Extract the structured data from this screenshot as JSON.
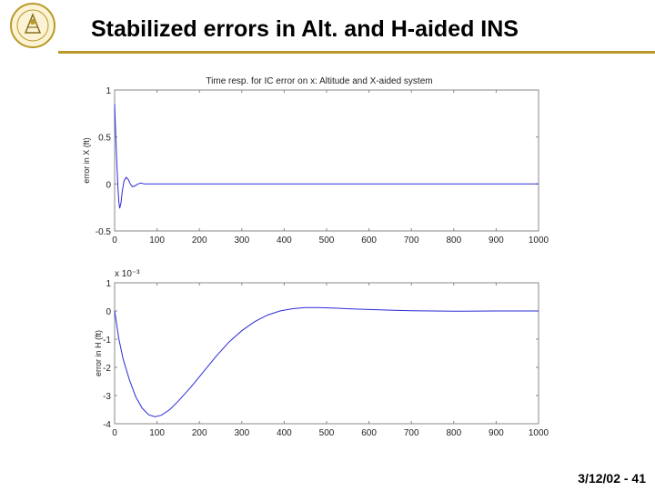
{
  "slide": {
    "title": "Stabilized errors in Alt. and H-aided INS",
    "footer": "3/12/02 - 41"
  },
  "colors": {
    "accent": "#b89a2a",
    "series": "#2b2bd6",
    "axis": "#888888"
  },
  "chart_data": [
    {
      "type": "line",
      "title": "Time resp. for IC error on x: Altitude and X-aided system",
      "ylabel": "error in X (ft)",
      "xlabel": "",
      "xlim": [
        0,
        1000
      ],
      "ylim": [
        -0.5,
        1
      ],
      "xticks": [
        0,
        100,
        200,
        300,
        400,
        500,
        600,
        700,
        800,
        900,
        1000
      ],
      "yticks": [
        -0.5,
        0,
        0.5,
        1
      ],
      "ytick_labels": [
        "-0.5",
        "0",
        "0.5",
        "1"
      ],
      "grid": false,
      "series": [
        {
          "x": [
            0,
            2,
            5,
            8,
            10,
            12,
            15,
            18,
            22,
            27,
            32,
            37,
            42,
            48,
            55,
            62,
            70,
            80,
            95,
            120,
            160,
            200,
            1000
          ],
          "y": [
            0.85,
            0.6,
            0.25,
            -0.05,
            -0.2,
            -0.26,
            -0.2,
            -0.08,
            0.03,
            0.07,
            0.05,
            0.0,
            -0.03,
            -0.02,
            0.0,
            0.01,
            0.0,
            0.0,
            0.0,
            0.0,
            0.0,
            0.0,
            0.0
          ]
        }
      ]
    },
    {
      "type": "line",
      "title": "",
      "ylabel": "error in H (ft)",
      "xlabel": "",
      "y_scale_note": "x 10⁻³",
      "xlim": [
        0,
        1000
      ],
      "ylim": [
        -4,
        1
      ],
      "xticks": [
        0,
        100,
        200,
        300,
        400,
        500,
        600,
        700,
        800,
        900,
        1000
      ],
      "yticks": [
        -4,
        -3,
        -2,
        -1,
        0,
        1
      ],
      "ytick_labels": [
        "-4",
        "-3",
        "-2",
        "-1",
        "0",
        "1"
      ],
      "grid": false,
      "series": [
        {
          "x": [
            0,
            10,
            20,
            35,
            50,
            65,
            80,
            95,
            110,
            130,
            150,
            180,
            210,
            240,
            270,
            300,
            330,
            360,
            390,
            420,
            450,
            480,
            520,
            560,
            600,
            650,
            700,
            750,
            800,
            900,
            1000
          ],
          "y": [
            0.0,
            -1.0,
            -1.7,
            -2.45,
            -3.05,
            -3.45,
            -3.68,
            -3.75,
            -3.7,
            -3.5,
            -3.2,
            -2.7,
            -2.15,
            -1.6,
            -1.1,
            -0.7,
            -0.38,
            -0.15,
            0.0,
            0.08,
            0.12,
            0.12,
            0.1,
            0.07,
            0.05,
            0.03,
            0.01,
            0.0,
            -0.01,
            0.0,
            0.0
          ]
        }
      ]
    }
  ]
}
